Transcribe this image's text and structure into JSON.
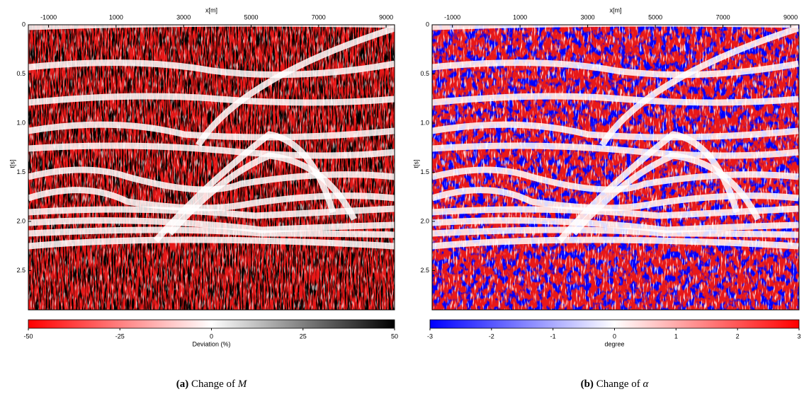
{
  "chart_data": [
    {
      "type": "heatmap",
      "xlabel": "x[m]",
      "ylabel": "t[s]",
      "xlim": [
        -1600,
        9250
      ],
      "xticks": [
        -1000,
        1000,
        3000,
        5000,
        7000,
        9000
      ],
      "ylim": [
        0,
        2.9
      ],
      "yticks": [
        0,
        0.5,
        {
          "value": 1.0,
          "label": "1.0"
        },
        1.5,
        {
          "value": 2.0,
          "label": "2.0"
        },
        2.5
      ],
      "colorbar": {
        "label": "Deviation (%)",
        "lim": [
          -50,
          50
        ],
        "ticks": [
          -50,
          -25,
          0,
          25,
          50
        ],
        "colors": [
          "#ff0000",
          "#ffffff",
          "#000000"
        ]
      },
      "caption_label": "(a)",
      "caption": "Change of",
      "caption_symbol": "M"
    },
    {
      "type": "heatmap",
      "xlabel": "x[m]",
      "ylabel": "t[s]",
      "xlim": [
        -1600,
        9250
      ],
      "xticks": [
        -1000,
        1000,
        3000,
        5000,
        7000,
        9000
      ],
      "ylim": [
        0,
        2.9
      ],
      "yticks": [
        0,
        0.5,
        {
          "value": 1.0,
          "label": "1.0"
        },
        1.5,
        {
          "value": 2.0,
          "label": "2.0"
        },
        2.5
      ],
      "colorbar": {
        "label": "degree",
        "lim": [
          -3,
          3
        ],
        "ticks": [
          -3,
          -2,
          -1,
          0,
          1,
          2,
          3
        ],
        "colors": [
          "#0000ff",
          "#ffffff",
          "#ff0000"
        ]
      },
      "caption_label": "(b)",
      "caption": "Change of",
      "caption_symbol": "α"
    }
  ]
}
